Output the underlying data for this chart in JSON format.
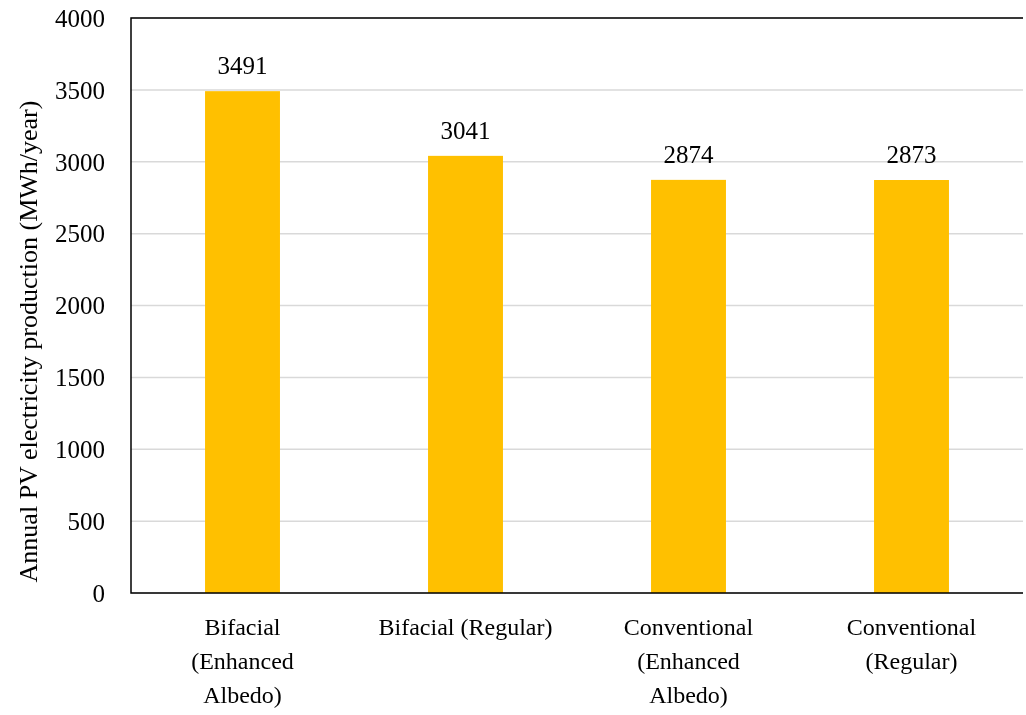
{
  "chart_data": {
    "type": "bar",
    "ylabel": "Annual PV electricity production (MWh/year)",
    "categories": [
      "Bifacial (Enhanced Albedo)",
      "Bifacial (Regular)",
      "Conventional (Enhanced Albedo)",
      "Conventional (Regular)"
    ],
    "values": [
      3491,
      3041,
      2874,
      2873
    ],
    "color": "#ffc000",
    "ylim": [
      0,
      4000
    ],
    "yticks": [
      0,
      500,
      1000,
      1500,
      2000,
      2500,
      3000,
      3500,
      4000
    ],
    "grid": "y",
    "data_labels": true
  }
}
